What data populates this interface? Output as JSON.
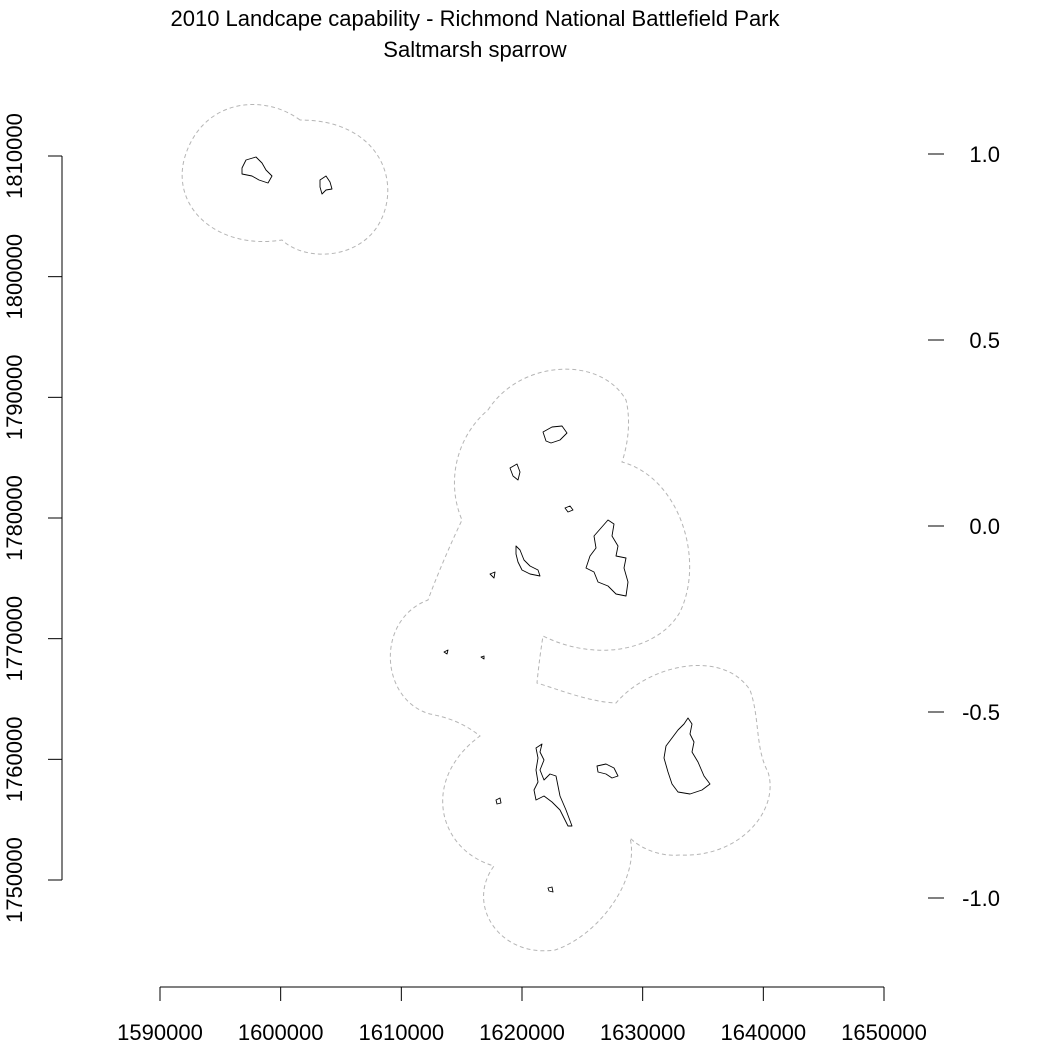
{
  "title": {
    "line1": "2010 Landcape capability - Richmond National Battlefield Park",
    "line2": "Saltmarsh sparrow"
  },
  "x_axis": {
    "range": [
      1590000,
      1650000
    ],
    "ticks": [
      {
        "value": 1590000,
        "label": "1590000"
      },
      {
        "value": 1600000,
        "label": "1600000"
      },
      {
        "value": 1610000,
        "label": "1610000"
      },
      {
        "value": 1620000,
        "label": "1620000"
      },
      {
        "value": 1630000,
        "label": "1630000"
      },
      {
        "value": 1640000,
        "label": "1640000"
      },
      {
        "value": 1650000,
        "label": "1650000"
      }
    ]
  },
  "y_axis": {
    "range": [
      1750000,
      1810000
    ],
    "ticks": [
      {
        "value": 1750000,
        "label": "1750000"
      },
      {
        "value": 1760000,
        "label": "1760000"
      },
      {
        "value": 1770000,
        "label": "1770000"
      },
      {
        "value": 1780000,
        "label": "1780000"
      },
      {
        "value": 1790000,
        "label": "1790000"
      },
      {
        "value": 1800000,
        "label": "1800000"
      },
      {
        "value": 1810000,
        "label": "1810000"
      }
    ]
  },
  "legend_axis": {
    "range": [
      -1.0,
      1.0
    ],
    "ticks": [
      {
        "value": 1.0,
        "label": "1.0"
      },
      {
        "value": 0.5,
        "label": "0.5"
      },
      {
        "value": 0.0,
        "label": "0.0"
      },
      {
        "value": -0.5,
        "label": "-0.5"
      },
      {
        "value": -1.0,
        "label": "-1.0"
      }
    ]
  },
  "colors": {
    "buffer_outline": "#b5b5b5",
    "patch_outline": "#000000"
  }
}
